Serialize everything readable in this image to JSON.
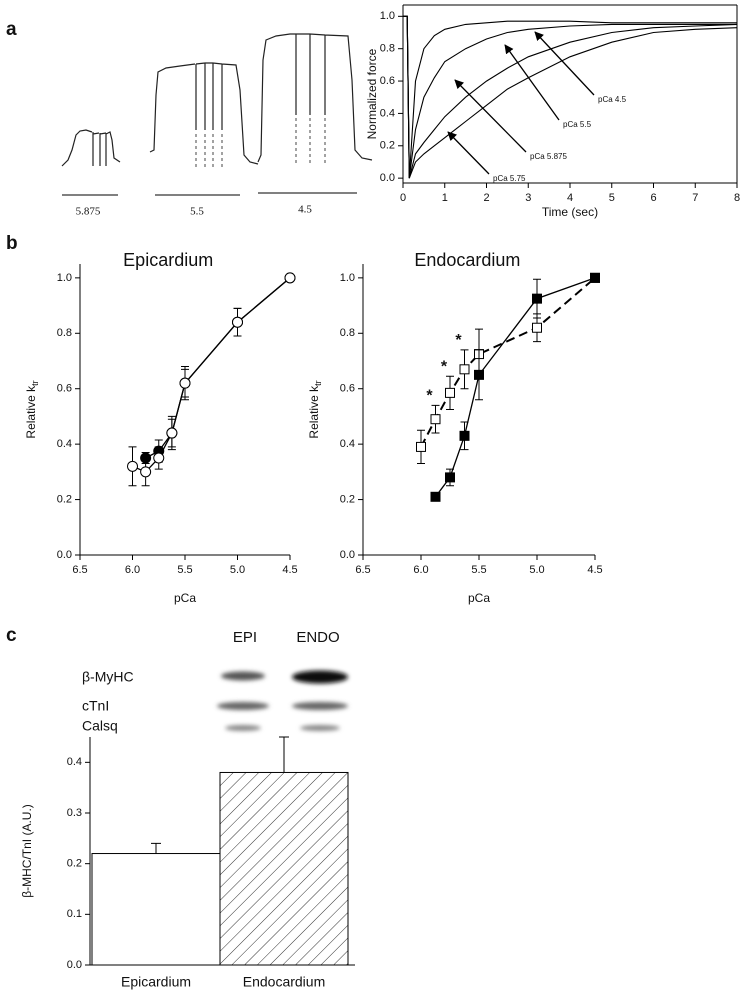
{
  "panel_labels": [
    "a",
    "b",
    "c"
  ],
  "traces": {
    "labels": [
      "5.875",
      "5.5",
      "4.5"
    ]
  },
  "blot": {
    "lanes": [
      "EPI",
      "ENDO"
    ],
    "bands": [
      "β-MyHC",
      "cTnI",
      "Calsq"
    ]
  },
  "chart_data": [
    {
      "type": "line",
      "xlabel": "Time (sec)",
      "ylabel": "Normalized force",
      "frame": true,
      "x": [
        0,
        0.1,
        0.15,
        0.3,
        0.5,
        0.75,
        1,
        1.5,
        2,
        2.5,
        3,
        4,
        5,
        6,
        7,
        8
      ],
      "xlim": [
        0,
        8
      ],
      "xticks": [
        0,
        1,
        2,
        3,
        4,
        5,
        6,
        7,
        8
      ],
      "ylim": [
        -0.03,
        1.07
      ],
      "yticks": [
        {
          "value": 0,
          "label": "0.0"
        },
        0.2,
        0.4,
        0.6,
        0.8,
        {
          "value": 1,
          "label": "1.0"
        }
      ],
      "series": [
        {
          "name": "pCa 4.5",
          "color": "#000000",
          "values": [
            1,
            1,
            0,
            0.6,
            0.8,
            0.88,
            0.92,
            0.95,
            0.96,
            0.97,
            0.97,
            0.97,
            0.96,
            0.96,
            0.96,
            0.96
          ]
        },
        {
          "name": "pCa 5.5",
          "color": "#000000",
          "values": [
            1,
            1,
            0,
            0.3,
            0.5,
            0.62,
            0.72,
            0.8,
            0.86,
            0.9,
            0.92,
            0.94,
            0.95,
            0.95,
            0.95,
            0.95
          ]
        },
        {
          "name": "pCa 5.875",
          "color": "#000000",
          "values": [
            1,
            1,
            0,
            0.15,
            0.22,
            0.3,
            0.38,
            0.5,
            0.6,
            0.68,
            0.75,
            0.84,
            0.9,
            0.93,
            0.94,
            0.95
          ]
        },
        {
          "name": "pCa 5.75",
          "color": "#000000",
          "values": [
            1,
            1,
            0,
            0.1,
            0.15,
            0.2,
            0.25,
            0.35,
            0.45,
            0.55,
            0.62,
            0.75,
            0.84,
            0.9,
            0.92,
            0.93
          ]
        }
      ]
    },
    {
      "type": "scatter",
      "title": "Epicardium",
      "xlabel": "pCa",
      "ylabel": "Relative k",
      "ylabel_sub": "tr",
      "xlim": [
        6.5,
        4.5
      ],
      "xticks": [
        6.5,
        {
          "value": 6,
          "label": "6.0"
        },
        5.5,
        {
          "value": 5,
          "label": "5.0"
        },
        4.5
      ],
      "ylim": [
        0,
        1.05
      ],
      "yticks": [
        {
          "value": 0,
          "label": "0.0"
        },
        0.2,
        0.4,
        0.6,
        0.8,
        {
          "value": 1,
          "label": "1.0"
        }
      ],
      "series": [
        {
          "color": "#000000",
          "marker": "circle",
          "filled": true,
          "dash": false,
          "x": [
            5.875,
            5.75,
            5.625,
            5.5,
            5.0,
            4.5
          ],
          "values": [
            0.35,
            0.375,
            0.44,
            0.62,
            0.84,
            1.0
          ],
          "errors": [
            0.02,
            0.04,
            0.05,
            0.05,
            0.05,
            0
          ]
        },
        {
          "color": "#000000",
          "marker": "circle",
          "filled": false,
          "dash": false,
          "x": [
            6.0,
            5.875,
            5.75,
            5.625,
            5.5,
            5.0,
            4.5
          ],
          "values": [
            0.32,
            0.3,
            0.35,
            0.44,
            0.62,
            0.84,
            1.0
          ],
          "errors": [
            0.07,
            0.05,
            0.04,
            0.06,
            0.06,
            0.05,
            0
          ]
        }
      ]
    },
    {
      "type": "scatter",
      "title": "Endocardium",
      "xlabel": "pCa",
      "ylabel": "Relative k",
      "ylabel_sub": "tr",
      "xlim": [
        6.5,
        4.5
      ],
      "xticks": [
        6.5,
        {
          "value": 6,
          "label": "6.0"
        },
        5.5,
        {
          "value": 5,
          "label": "5.0"
        },
        4.5
      ],
      "ylim": [
        0,
        1.05
      ],
      "yticks": [
        {
          "value": 0,
          "label": "0.0"
        },
        0.2,
        0.4,
        0.6,
        0.8,
        {
          "value": 1,
          "label": "1.0"
        }
      ],
      "annotations": [
        "*",
        "*",
        "*"
      ],
      "series": [
        {
          "color": "#000000",
          "marker": "square",
          "filled": false,
          "dash": true,
          "x": [
            6.0,
            5.875,
            5.75,
            5.625,
            5.5,
            5.0,
            4.5
          ],
          "values": [
            0.39,
            0.49,
            0.585,
            0.67,
            0.725,
            0.82,
            1.0
          ],
          "errors": [
            0.06,
            0.05,
            0.06,
            0.07,
            0.09,
            0.05,
            0
          ]
        },
        {
          "color": "#000000",
          "marker": "square",
          "filled": true,
          "dash": false,
          "x": [
            5.875,
            5.75,
            5.625,
            5.5,
            5.0,
            4.5
          ],
          "values": [
            0.21,
            0.28,
            0.43,
            0.65,
            0.925,
            1.0
          ],
          "errors": [
            0.01,
            0.03,
            0.05,
            0.09,
            0.07,
            0
          ]
        }
      ]
    },
    {
      "type": "bar",
      "ylabel": "β-MHC/TnI (A.U.)",
      "categories": [
        "Epicardium",
        "Endocardium"
      ],
      "values": [
        0.22,
        0.38
      ],
      "errors": [
        0.02,
        0.07
      ],
      "hatch": [
        false,
        true
      ],
      "color": "#ffffff",
      "ylim": [
        0,
        0.45
      ],
      "yticks": [
        {
          "value": 0,
          "label": "0.0"
        },
        0.1,
        0.2,
        0.3,
        0.4
      ]
    }
  ]
}
